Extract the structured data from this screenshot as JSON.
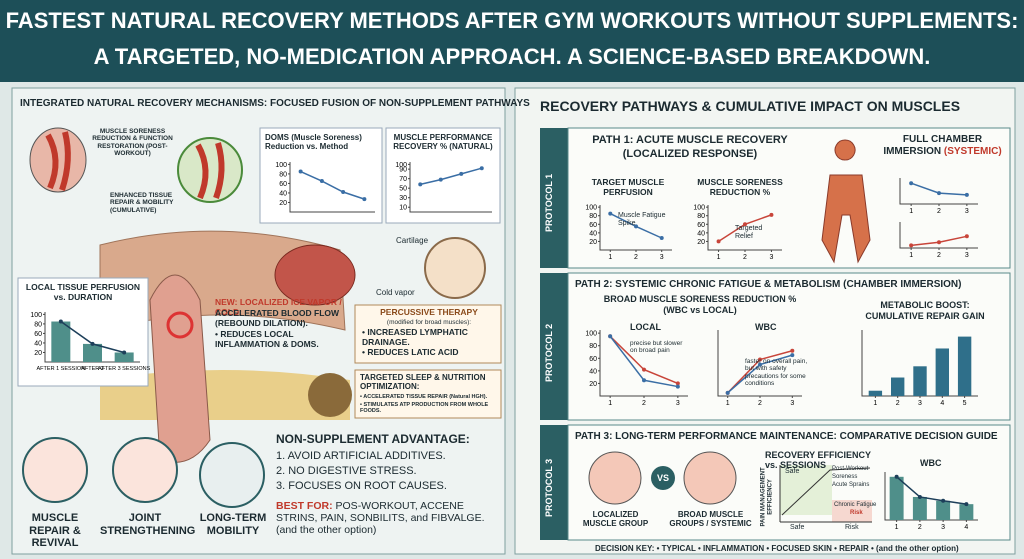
{
  "header": {
    "title": [
      "FASTEST NATURAL RECOVERY METHODS AFTER GYM WORKOUTS WITHOUT SUPPLEMENTS:",
      "A TARGETED, NO-MEDICATION APPROACH. A SCIENCE-BASED BREAKDOWN."
    ]
  },
  "left": {
    "heading": "INTEGRATED NATURAL RECOVERY MECHANISMS: FOCUSED FUSION OF NON-SUPPLEMENT PATHWAYS",
    "callouts": [
      "MUSCLE SORENESS REDUCTION & FUNCTION RESTORATION (POST-WORKOUT)",
      "ENHANCED TISSUE REPAIR & MOBILITY (CUMULATIVE)",
      "Cartilage",
      "Cold vapor"
    ],
    "doms_chart": {
      "type": "line",
      "title": "DOMS (Muscle Soreness) Reduction vs. Method",
      "categories": [
        null,
        null,
        null,
        null
      ],
      "ylim": [
        0,
        105
      ],
      "yticks": [
        100,
        80,
        60,
        40,
        20
      ],
      "series": [
        {
          "color": "#3a6ea5",
          "values": [
            85,
            65,
            42,
            27
          ]
        }
      ]
    },
    "performance_chart": {
      "type": "line",
      "title": "MUSCLE PERFORMANCE RECOVERY % (NATURAL)",
      "categories": [
        null,
        null,
        null,
        null
      ],
      "ylim": [
        0,
        105
      ],
      "yticks": [
        100,
        90,
        70,
        50,
        30,
        10
      ],
      "series": [
        {
          "color": "#3a6ea5",
          "values": [
            58,
            68,
            80,
            92
          ]
        }
      ]
    },
    "perfusion_chart": {
      "type": "bar",
      "overlay_line": true,
      "title": "LOCAL TISSUE PERFUSION vs. DURATION",
      "categories": [
        "AFTER 1 SESSION",
        "AFTER 2",
        "AFTER 3 SESSIONS"
      ],
      "ylim": [
        0,
        105
      ],
      "yticks": [
        100,
        80,
        60,
        40,
        20
      ],
      "series": [
        {
          "color": "#4f8f8a",
          "values": [
            85,
            38,
            20
          ]
        }
      ]
    },
    "ice_box": {
      "title": "NEW: LOCALIZED ICE VAPOR / COLD:",
      "lines": [
        "ACCELERATED BLOOD FLOW (REBOUND DILATION).",
        "• REDUCES LOCAL INFLAMMATION & DOMS."
      ]
    },
    "percussive_box": {
      "title": "PERCUSSIVE THERAPY",
      "subtitle": "(modified for broad muscles):",
      "lines": [
        "• INCREASED LYMPHATIC DRAINAGE.",
        "• REDUCES LATIC ACID"
      ]
    },
    "sleep_box": {
      "title": "TARGETED SLEEP & NUTRITION OPTIMIZATION:",
      "lines": [
        "• ACCELERATED TISSUE REPAIR (Natural HGH).",
        "• STIMULATES ATP PRODUCTION FROM WHOLE FOODS."
      ]
    },
    "advantage": {
      "title": "NON-SUPPLEMENT ADVANTAGE:",
      "items": [
        "1. AVOID ARTIFICIAL ADDITIVES.",
        "2. NO DIGESTIVE STRESS.",
        "3. FOCUSES ON ROOT CAUSES."
      ],
      "best_label": "BEST FOR:",
      "best_text": "POS-WORKOUT, ACCENE STRINS, PAIN, SONBILITS, and FIBVALGE. (and the other option)"
    },
    "icons": [
      "MUSCLE REPAIR & REVIVAL",
      "JOINT STRENGTHENING",
      "LONG-TERM MOBILITY"
    ]
  },
  "right": {
    "heading": "RECOVERY PATHWAYS & CUMULATIVE IMPACT ON MUSCLES",
    "protocols": [
      {
        "label": "PROTOCOL 1",
        "title": [
          "PATH 1: ACUTE MUSCLE RECOVERY",
          "(LOCALIZED RESPONSE)"
        ],
        "perfusion_chart": {
          "type": "line",
          "title": "TARGET MUSCLE PERFUSION",
          "annotation": "Muscle Fatigue Spike",
          "x": [
            1,
            2,
            3
          ],
          "xlim": [
            0.6,
            3.4
          ],
          "xticks": [
            1,
            2,
            3
          ],
          "ylim": [
            0,
            105
          ],
          "yticks": [
            100,
            80,
            60,
            40,
            20
          ],
          "series": [
            {
              "color": "#3a6ea5",
              "values": [
                85,
                55,
                28
              ]
            }
          ]
        },
        "soreness_chart": {
          "type": "line",
          "title": "MUSCLE SORENESS REDUCTION %",
          "annotation": "Targeted Relief",
          "x": [
            1,
            2,
            3
          ],
          "xlim": [
            0.6,
            3.4
          ],
          "xticks": [
            1,
            2,
            3
          ],
          "ylim": [
            0,
            105
          ],
          "yticks": [
            100,
            80,
            60,
            40,
            20
          ],
          "series": [
            {
              "color": "#c8453a",
              "values": [
                20,
                60,
                82
              ]
            }
          ]
        },
        "immersion": {
          "title": "FULL CHAMBER IMMERSION",
          "highlight": "(SYSTEMIC)",
          "charts": [
            {
              "type": "line",
              "x": [
                1,
                2,
                3
              ],
              "xlim": [
                0.6,
                3.4
              ],
              "xticks": [
                1,
                2,
                3
              ],
              "ylim": [
                0,
                100
              ],
              "series": [
                {
                  "color": "#3a6ea5",
                  "values": [
                    80,
                    42,
                    35
                  ]
                }
              ]
            },
            {
              "type": "line",
              "x": [
                1,
                2,
                3
              ],
              "xlim": [
                0.6,
                3.4
              ],
              "xticks": [
                1,
                2,
                3
              ],
              "ylim": [
                0,
                100
              ],
              "series": [
                {
                  "color": "#c8453a",
                  "values": [
                    10,
                    22,
                    45
                  ]
                }
              ]
            }
          ]
        }
      },
      {
        "label": "PROTOCOL 2",
        "title": [
          "PATH 2: SYSTEMIC CHRONIC FATIGUE & METABOLISM (CHAMBER IMMERSION)"
        ],
        "soreness_heading": [
          "BROAD MUSCLE SORENESS REDUCTION %",
          "(WBC vs LOCAL)"
        ],
        "local_chart": {
          "type": "line",
          "title": "LOCAL",
          "annotation": "precise but slower on broad pain",
          "x": [
            1,
            2,
            3
          ],
          "xlim": [
            0.7,
            3.3
          ],
          "xticks": [
            1,
            2,
            3
          ],
          "ylim": [
            0,
            105
          ],
          "yticks": [
            100,
            80,
            60,
            40,
            20
          ],
          "series": [
            {
              "color": "#c8453a",
              "values": [
                95,
                42,
                20
              ]
            },
            {
              "color": "#3a6ea5",
              "values": [
                95,
                25,
                15
              ]
            }
          ]
        },
        "wbc_chart": {
          "type": "line",
          "title": "WBC",
          "annotation": "faster on overall pain, but with safety precautions for some conditions",
          "x": [
            1,
            2,
            3
          ],
          "xlim": [
            0.7,
            3.3
          ],
          "xticks": [
            1,
            2,
            3
          ],
          "ylim": [
            0,
            105
          ],
          "series": [
            {
              "color": "#c8453a",
              "values": [
                5,
                58,
                72
              ]
            },
            {
              "color": "#3a6ea5",
              "values": [
                5,
                50,
                65
              ]
            }
          ]
        },
        "metabolic_chart": {
          "type": "bar",
          "title": [
            "METABOLIC BOOST:",
            "CUMULATIVE REPAIR GAIN"
          ],
          "x": [
            1,
            2,
            3,
            4,
            5
          ],
          "xlim": [
            0.4,
            5.6
          ],
          "xticks": [
            1,
            2,
            3,
            4,
            5
          ],
          "ylim": [
            0,
            100
          ],
          "series": [
            {
              "color": "#2f6f8a",
              "values": [
                8,
                28,
                45,
                72,
                90
              ]
            }
          ]
        }
      },
      {
        "label": "PROTOCOL 3",
        "title": [
          "PATH 3: LONG-TERM PERFORMANCE MAINTENANCE: COMPARATIVE DECISION GUIDE"
        ],
        "groups": [
          "LOCALIZED MUSCLE GROUP",
          "BROAD MUSCLE GROUPS / SYSTEMIC"
        ],
        "vs": "VS",
        "efficiency": {
          "title": "RECOVERY EFFICIENCY vs. SESSIONS",
          "y_label": "PAIN MANAGEMENT EFFICIENCY",
          "zones": [
            "Safe",
            "Safe",
            "Risk"
          ],
          "legend": [
            "Post-Workout",
            "Soreness",
            "Acute Sprains",
            "Chronic Fatigue",
            "Risk"
          ]
        },
        "wbc_chart": {
          "type": "bar",
          "overlay_line": true,
          "title": "WBC",
          "x": [
            1,
            2,
            3,
            4
          ],
          "xlim": [
            0.5,
            4.5
          ],
          "xticks": [
            1,
            2,
            3,
            4
          ],
          "ylim": [
            0,
            100
          ],
          "series": [
            {
              "color": "#4f8f8a",
              "values": [
                90,
                48,
                40,
                33
              ]
            }
          ]
        },
        "key": "DECISION KEY: • TYPICAL • INFLAMMATION • FOCUSED SKIN • REPAIR • (and the other option)"
      }
    ]
  }
}
